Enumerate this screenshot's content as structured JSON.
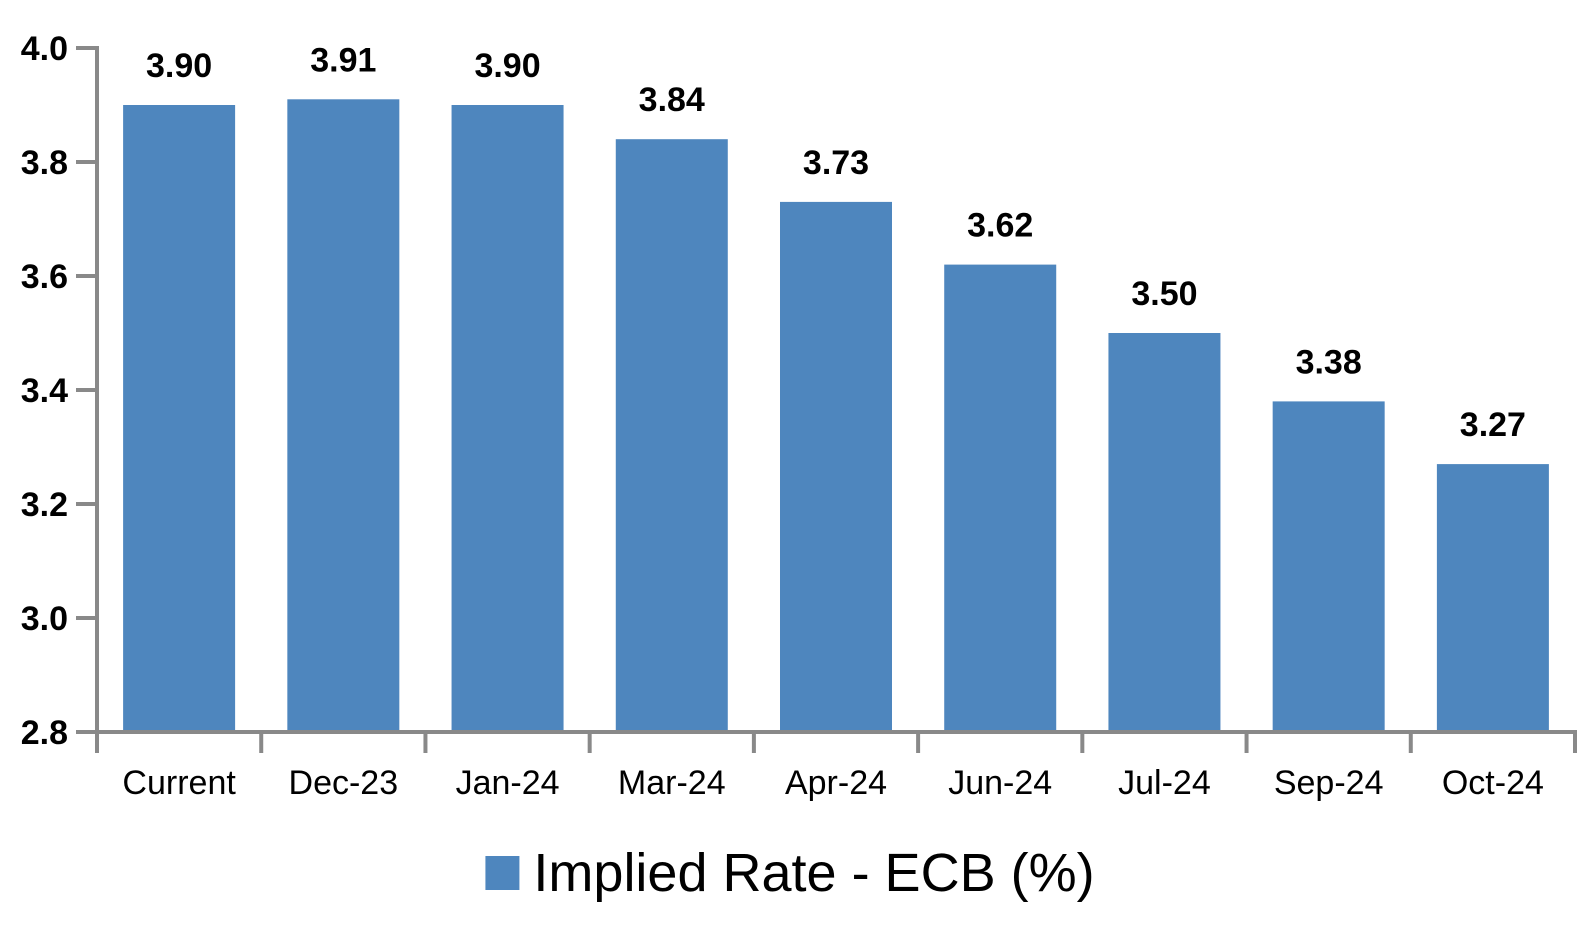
{
  "chart_data": {
    "type": "bar",
    "title": "",
    "xlabel": "",
    "ylabel": "",
    "categories": [
      "Current",
      "Dec-23",
      "Jan-24",
      "Mar-24",
      "Apr-24",
      "Jun-24",
      "Jul-24",
      "Sep-24",
      "Oct-24"
    ],
    "values": [
      3.9,
      3.91,
      3.9,
      3.84,
      3.73,
      3.62,
      3.5,
      3.38,
      3.27
    ],
    "data_labels": [
      "3.90",
      "3.91",
      "3.90",
      "3.84",
      "3.73",
      "3.62",
      "3.50",
      "3.38",
      "3.27"
    ],
    "ylim": [
      2.8,
      4.0
    ],
    "ytick_step": 0.2,
    "yticks": [
      "2.8",
      "3.0",
      "3.2",
      "3.4",
      "3.6",
      "3.8",
      "4.0"
    ],
    "grid": false,
    "legend": {
      "label": "Implied Rate - ECB (%)",
      "position": "bottom-center"
    },
    "colors": {
      "bar": "#4E86BE",
      "axis": "#898989",
      "text": "#000000",
      "background": "#FFFFFF"
    }
  }
}
